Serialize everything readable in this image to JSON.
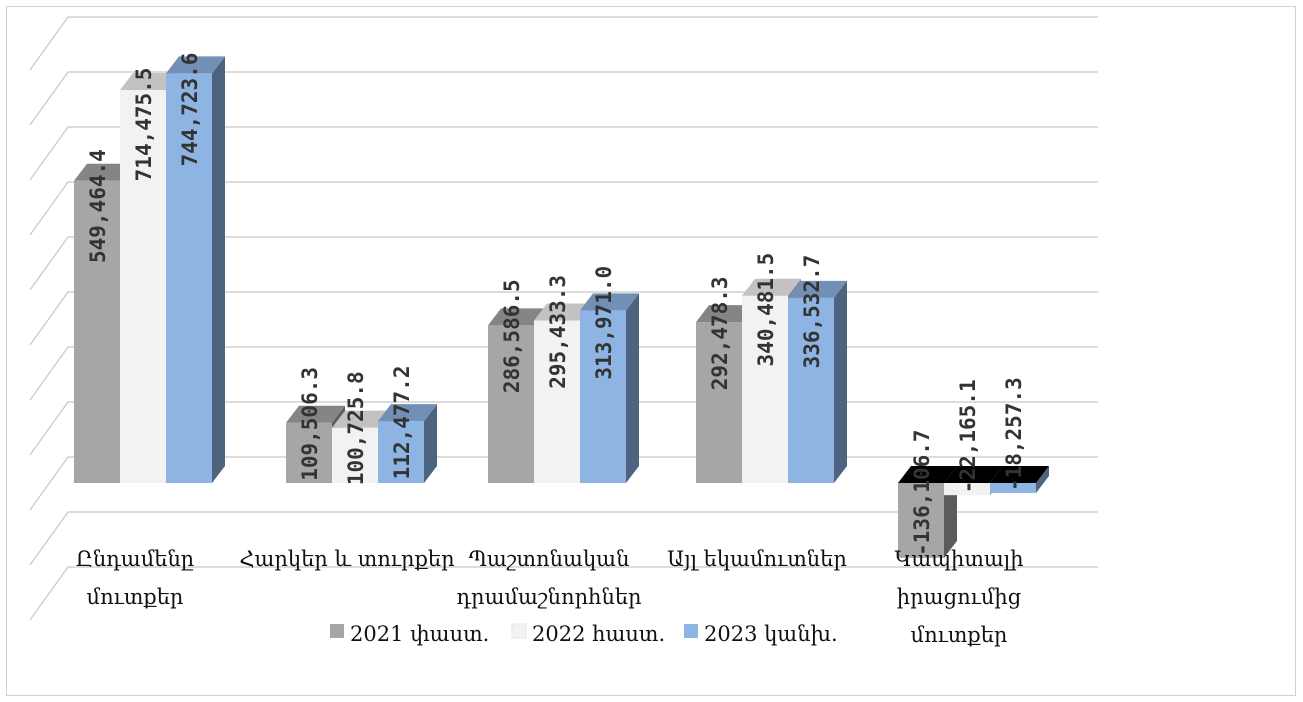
{
  "chart_data": {
    "type": "bar",
    "three_d": true,
    "categories": [
      [
        "Ընդամենը",
        "մուտքեր"
      ],
      [
        "Հարկեր և տուրքեր"
      ],
      [
        "Պաշտոնական",
        "դրամաշնորհներ"
      ],
      [
        "Այլ եկամուտներ"
      ],
      [
        "Կապիտալի",
        "իրացումից",
        "մուտքեր"
      ]
    ],
    "series": [
      {
        "name": "2021 փաստ.",
        "color": "#a6a6a6",
        "values": [
          549464.4,
          109506.3,
          286586.5,
          292478.3,
          -136106.7
        ],
        "labels": [
          "549,464.4",
          "109,506.3",
          "286,586.5",
          "292,478.3",
          "-136,106.7"
        ]
      },
      {
        "name": "2022 հաստ.",
        "color": "#f2f2f2",
        "values": [
          714475.5,
          100725.8,
          295433.3,
          340481.5,
          -22165.1
        ],
        "labels": [
          "714,475.5",
          "100,725.8",
          "295,433.3",
          "340,481.5",
          "-22,165.1"
        ]
      },
      {
        "name": "2023 կանխ.",
        "color": "#8eb4e3",
        "values": [
          744723.6,
          112477.2,
          313971.0,
          336532.7,
          -18257.3
        ],
        "labels": [
          "744,723.6",
          "112,477.2",
          "313,971.0",
          "336,532.7",
          "-18,257.3"
        ]
      }
    ],
    "ylim": [
      -200000,
      800000
    ],
    "grid": true,
    "legend_position": "bottom",
    "title": "",
    "xlabel": "",
    "ylabel": ""
  }
}
